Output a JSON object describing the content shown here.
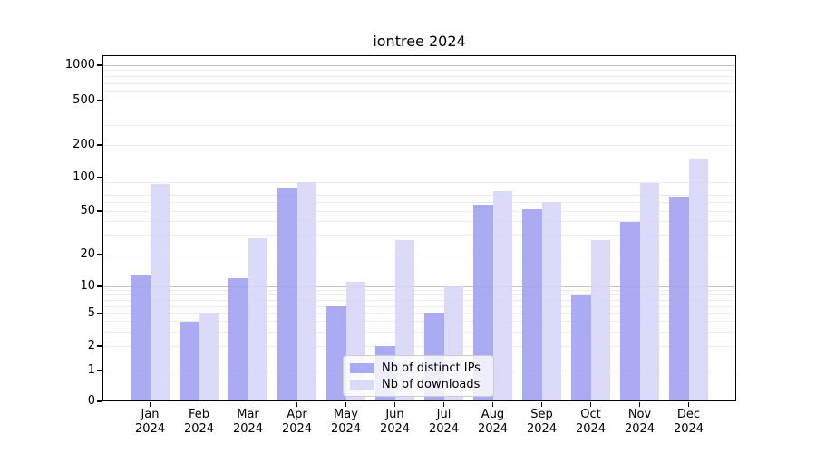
{
  "chart_data": {
    "type": "bar",
    "title": "iontree 2024",
    "categories": [
      "Jan 2024",
      "Feb 2024",
      "Mar 2024",
      "Apr 2024",
      "May 2024",
      "Jun 2024",
      "Jul 2024",
      "Aug 2024",
      "Sep 2024",
      "Oct 2024",
      "Nov 2024",
      "Dec 2024"
    ],
    "series": [
      {
        "name": "Nb of distinct IPs",
        "color": "#9e9ef2",
        "values": [
          13,
          4,
          12,
          80,
          6,
          2,
          5,
          57,
          52,
          8,
          40,
          68
        ]
      },
      {
        "name": "Nb of downloads",
        "color": "#d6d6f8",
        "values": [
          87,
          5,
          28,
          91,
          11,
          27,
          10,
          75,
          60,
          27,
          89,
          150
        ]
      }
    ],
    "ylabel": "",
    "xlabel": "",
    "yticks": [
      "0",
      "1",
      "2",
      "5",
      "10",
      "20",
      "50",
      "100",
      "200",
      "500",
      "1000"
    ],
    "ylim": [
      0,
      1000
    ],
    "yscale": "log above 1, compressed linear 0-1",
    "grid": "horizontal major+minor",
    "legend_position": "lower center inside plot"
  },
  "colors": {
    "major_grid": "#c3c3c3",
    "minor_grid": "#ececec",
    "axis": "#000000",
    "text": "#000000",
    "legend_border": "#cccccc"
  }
}
